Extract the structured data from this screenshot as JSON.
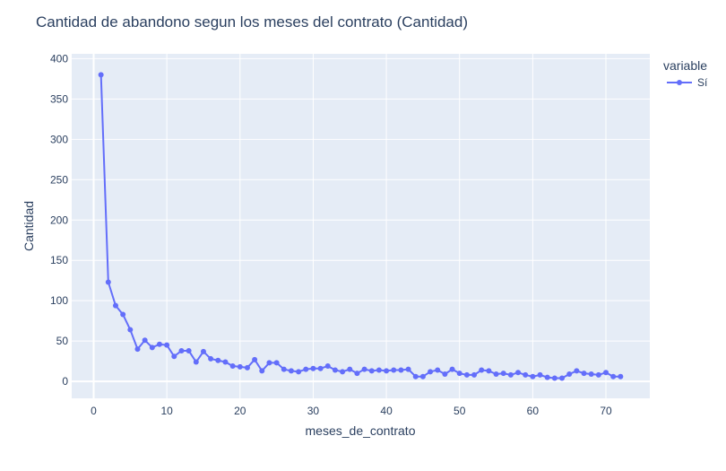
{
  "chart_data": {
    "type": "line",
    "title": "Cantidad de abandono segun los meses del contrato (Cantidad)",
    "xlabel": "meses_de_contrato",
    "ylabel": "Cantidad",
    "xlim": [
      -3,
      76
    ],
    "ylim": [
      -21,
      406
    ],
    "xticks": [
      0,
      10,
      20,
      30,
      40,
      50,
      60,
      70
    ],
    "yticks": [
      0,
      50,
      100,
      150,
      200,
      250,
      300,
      350,
      400
    ],
    "grid": true,
    "legend": {
      "title": "variable",
      "placement": "top-right"
    },
    "series": [
      {
        "name": "Sí",
        "color": "#636efa",
        "x": [
          1,
          2,
          3,
          4,
          5,
          6,
          7,
          8,
          9,
          10,
          11,
          12,
          13,
          14,
          15,
          16,
          17,
          18,
          19,
          20,
          21,
          22,
          23,
          24,
          25,
          26,
          27,
          28,
          29,
          30,
          31,
          32,
          33,
          34,
          35,
          36,
          37,
          38,
          39,
          40,
          41,
          42,
          43,
          44,
          45,
          46,
          47,
          48,
          49,
          50,
          51,
          52,
          53,
          54,
          55,
          56,
          57,
          58,
          59,
          60,
          61,
          62,
          63,
          64,
          65,
          66,
          67,
          68,
          69,
          70,
          71,
          72
        ],
        "y": [
          380,
          123,
          94,
          83,
          64,
          40,
          51,
          42,
          46,
          45,
          31,
          38,
          38,
          24,
          37,
          28,
          26,
          24,
          19,
          18,
          17,
          27,
          13,
          23,
          23,
          15,
          13,
          12,
          15,
          16,
          16,
          19,
          14,
          12,
          15,
          10,
          15,
          13,
          14,
          13,
          14,
          14,
          15,
          6,
          6,
          12,
          14,
          9,
          15,
          10,
          8,
          8,
          14,
          13,
          9,
          10,
          8,
          11,
          8,
          6,
          8,
          5,
          4,
          4,
          9,
          13,
          10,
          9,
          8,
          11,
          6,
          6
        ]
      }
    ]
  },
  "colors": {
    "plot_bg": "#e5ecf6",
    "grid": "#ffffff",
    "text": "#2a3f5f",
    "series": "#636efa"
  }
}
